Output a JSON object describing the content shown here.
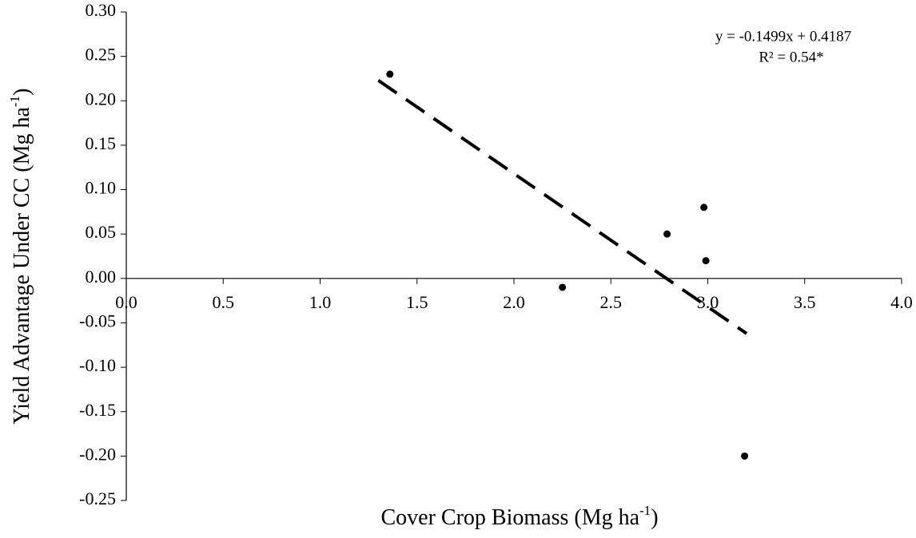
{
  "chart_data": {
    "type": "scatter",
    "xlabel": [
      "Cover Crop Biomass  (Mg ha",
      "-1",
      ")"
    ],
    "ylabel": [
      "Yield Advantage  Under CC (Mg ha",
      "-1",
      ")"
    ],
    "annotation": [
      "y = -0.1499x + 0.4187",
      "R² = 0.54*"
    ],
    "x": [
      1.36,
      2.25,
      2.79,
      2.98,
      2.99,
      3.19
    ],
    "series": [
      {
        "color": "#000000",
        "values": [
          0.23,
          -0.01,
          0.05,
          0.08,
          0.02,
          -0.2
        ]
      }
    ],
    "trendline": {
      "x": [
        1.3,
        3.2
      ],
      "y": [
        0.223,
        -0.062
      ],
      "color": "#000000"
    },
    "xlim": [
      0,
      4
    ],
    "xticks": [
      {
        "value": 0,
        "label": "0.0"
      },
      0.5,
      {
        "value": 1,
        "label": "1.0"
      },
      1.5,
      {
        "value": 2,
        "label": "2.0"
      },
      2.5,
      {
        "value": 3,
        "label": "3.0"
      },
      3.5,
      {
        "value": 4,
        "label": "4.0"
      }
    ],
    "ylim": [
      -0.25,
      0.3
    ],
    "yticks": [
      -0.25,
      {
        "value": -0.2,
        "label": "-0.20"
      },
      -0.15,
      {
        "value": -0.1,
        "label": "-0.10"
      },
      -0.05,
      {
        "value": 0,
        "label": "0.00"
      },
      0.05,
      {
        "value": 0.1,
        "label": "0.10"
      },
      0.15,
      {
        "value": 0.2,
        "label": "0.20"
      },
      0.25,
      {
        "value": 0.3,
        "label": "0.30"
      }
    ],
    "grid": false
  }
}
